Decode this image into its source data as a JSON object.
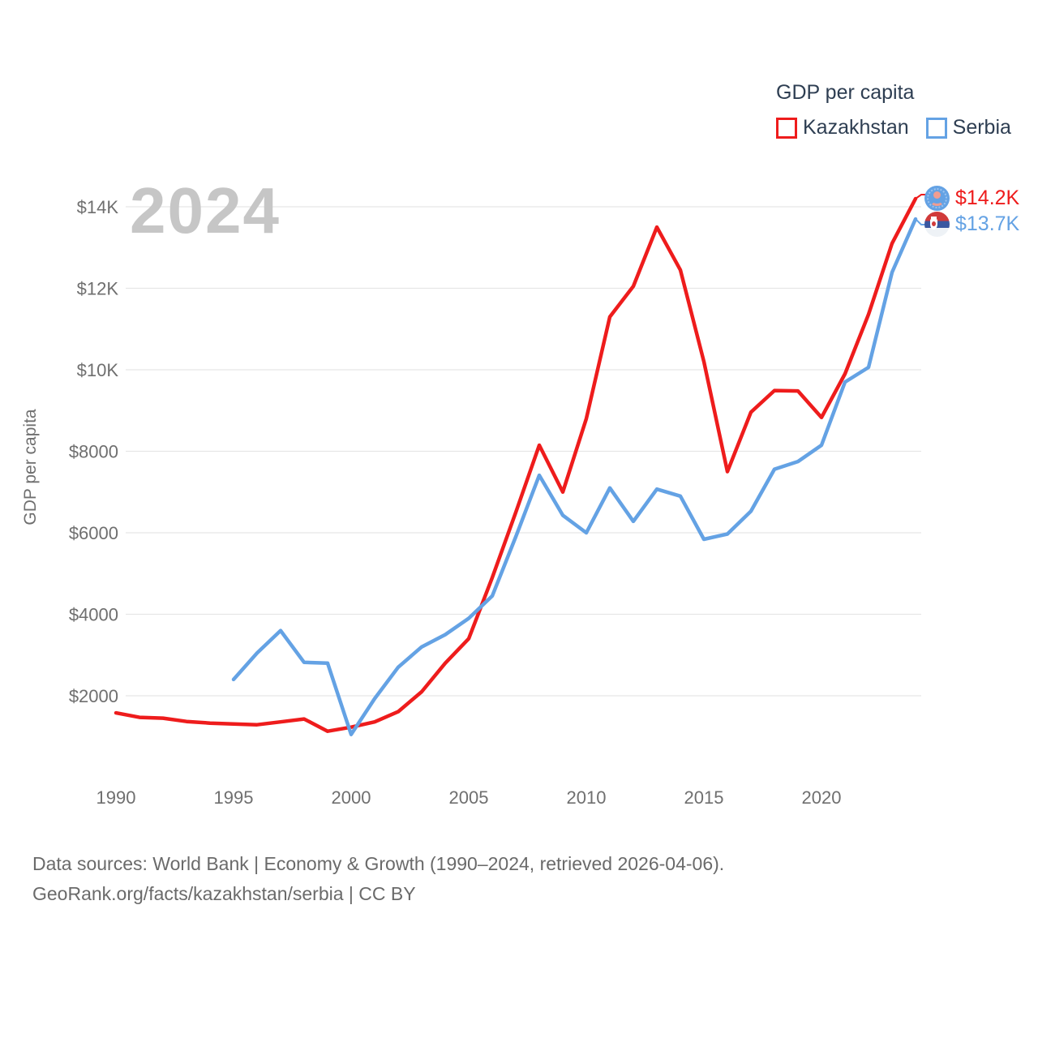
{
  "legend": {
    "title": "GDP per capita",
    "items": [
      {
        "label": "Kazakhstan",
        "color": "#ee1c1c"
      },
      {
        "label": "Serbia",
        "color": "#64a2e4"
      }
    ]
  },
  "watermark": {
    "text": "2024"
  },
  "end_labels": {
    "kazakhstan": "$14.2K",
    "serbia": "$13.7K"
  },
  "footer": {
    "line1": "Data sources: World Bank | Economy & Growth (1990–2024, retrieved 2026-04-06).",
    "line2": "GeoRank.org/facts/kazakhstan/serbia | CC BY"
  },
  "colors": {
    "kazakhstan_line": "#ee1c1c",
    "serbia_line": "#64a2e4",
    "legend_text": "#2e3e52",
    "tick_text": "#6f6f6f",
    "gridline": "#e7e7e7",
    "watermark": "#c6c6c6",
    "footer_text": "#6a6a6a"
  },
  "chart_data": {
    "type": "line",
    "title": "GDP per capita",
    "ylabel": "GDP per capita",
    "grid": "horizontal-only",
    "legend_position": "top-right",
    "ylim": [
      900,
      14500
    ],
    "x_ticks": [
      1990,
      1995,
      2000,
      2005,
      2010,
      2015,
      2020
    ],
    "y_ticks": [
      {
        "value": 2000,
        "label": "$2000"
      },
      {
        "value": 4000,
        "label": "$4000"
      },
      {
        "value": 6000,
        "label": "$6000"
      },
      {
        "value": 8000,
        "label": "$8000"
      },
      {
        "value": 10000,
        "label": "$10K"
      },
      {
        "value": 12000,
        "label": "$12K"
      },
      {
        "value": 14000,
        "label": "$14K"
      }
    ],
    "x": [
      1990,
      1991,
      1992,
      1993,
      1994,
      1995,
      1996,
      1997,
      1998,
      1999,
      2000,
      2001,
      2002,
      2003,
      2004,
      2005,
      2006,
      2007,
      2008,
      2009,
      2010,
      2011,
      2012,
      2013,
      2014,
      2015,
      2016,
      2017,
      2018,
      2019,
      2020,
      2021,
      2022,
      2023,
      2024
    ],
    "series": [
      {
        "name": "Kazakhstan",
        "color": "#ee1c1c",
        "end_label": "$14.2K",
        "values": [
          1580,
          1470,
          1450,
          1370,
          1330,
          1310,
          1290,
          1360,
          1430,
          1130,
          1230,
          1360,
          1610,
          2100,
          2800,
          3400,
          4900,
          6500,
          8150,
          7000,
          8800,
          11300,
          12050,
          13500,
          12450,
          10200,
          7500,
          8960,
          9490,
          9480,
          8830,
          9900,
          11360,
          13100,
          14200
        ]
      },
      {
        "name": "Serbia",
        "color": "#64a2e4",
        "end_label": "$13.7K",
        "values": [
          null,
          null,
          null,
          null,
          null,
          2400,
          3050,
          3600,
          2820,
          2800,
          1050,
          1930,
          2700,
          3200,
          3500,
          3900,
          4450,
          5900,
          7410,
          6430,
          6000,
          7100,
          6280,
          7070,
          6900,
          5840,
          5970,
          6530,
          7560,
          7750,
          8150,
          9700,
          10060,
          12390,
          13700
        ]
      }
    ]
  }
}
